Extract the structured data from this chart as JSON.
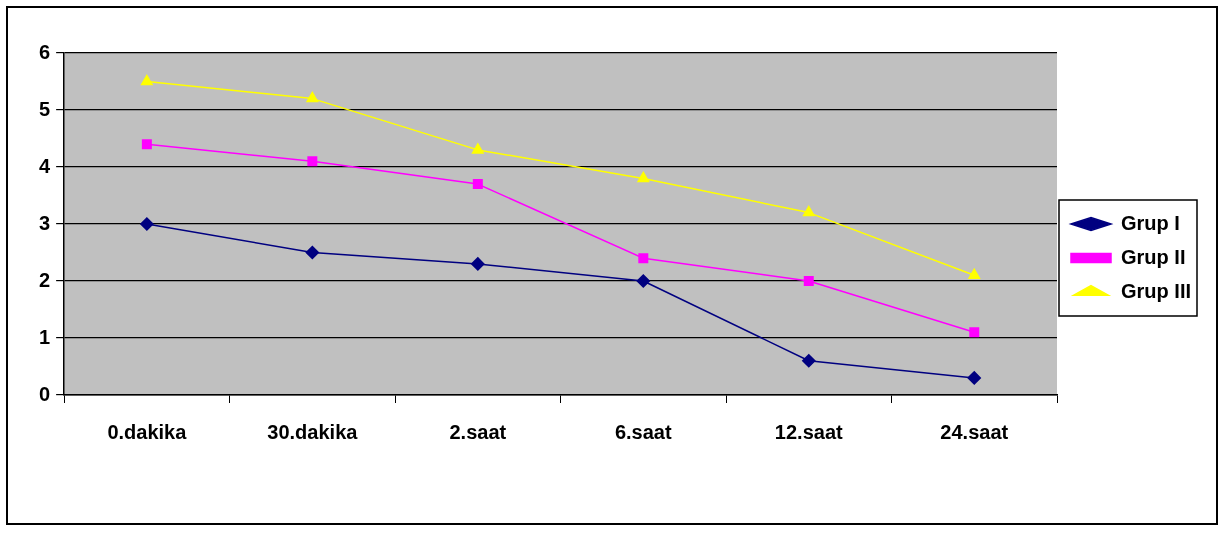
{
  "chart_data": {
    "type": "line",
    "categories": [
      "0.dakika",
      "30.dakika",
      "2.saat",
      "6.saat",
      "12.saat",
      "24.saat"
    ],
    "series": [
      {
        "name": "Grup I",
        "color": "#000080",
        "marker": "diamond",
        "values": [
          3,
          2.5,
          2.3,
          2,
          0.6,
          0.3
        ]
      },
      {
        "name": "Grup II",
        "color": "#ff00ff",
        "marker": "square",
        "values": [
          4.4,
          4.1,
          3.7,
          2.4,
          2,
          1.1
        ]
      },
      {
        "name": "Grup III",
        "color": "#ffff00",
        "marker": "triangle",
        "values": [
          5.5,
          5.2,
          4.3,
          3.8,
          3.2,
          2.1
        ]
      }
    ],
    "ylim": [
      0,
      6
    ],
    "yticks": [
      0,
      1,
      2,
      3,
      4,
      5,
      6
    ],
    "grid": "y",
    "legend": "right"
  }
}
